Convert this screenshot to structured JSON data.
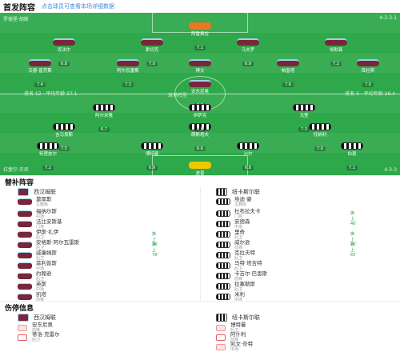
{
  "header": {
    "title": "首发阵容",
    "hint": "点击球员可查看本场详细数据"
  },
  "pitch": {
    "home_team_label": "罗德里·胡斯",
    "away_team_label": "拉斐尔·贝尼",
    "home_formation": "4-2-3-1",
    "away_formation": "4-3-3",
    "home_coach_info": "排名 12 · 平均年龄 27.1",
    "away_coach_info": "排名 5 · 平均年龄 26.4",
    "center_label": "球场阵型"
  },
  "home_players": [
    {
      "name": "阿雷奥拉",
      "rating": "7.1",
      "kit": "gk-home"
    },
    {
      "name": "库法尔",
      "rating": "6.8",
      "kit": "claret"
    },
    {
      "name": "索切克",
      "rating": "7.0",
      "kit": "claret"
    },
    {
      "name": "马夫罗",
      "rating": "6.9",
      "kit": "claret"
    },
    {
      "name": "埃默森",
      "rating": "7.2",
      "kit": "claret"
    },
    {
      "name": "沃德-普劳斯",
      "rating": "7.4",
      "kit": "claret"
    },
    {
      "name": "阿尔瓦雷斯",
      "rating": "7.3",
      "kit": "claret"
    },
    {
      "name": "博文",
      "rating": "6.7",
      "kit": "claret"
    },
    {
      "name": "帕奎塔",
      "rating": "7.6",
      "kit": "claret"
    },
    {
      "name": "库杜斯",
      "rating": "7.0",
      "kit": "claret"
    },
    {
      "name": "安东尼奥",
      "rating": "6.5",
      "kit": "claret"
    }
  ],
  "away_players": [
    {
      "name": "波普",
      "rating": "7.0",
      "kit": "gk-away"
    },
    {
      "name": "特里皮尔",
      "rating": "7.2",
      "kit": "stripes"
    },
    {
      "name": "博特曼",
      "rating": "6.9",
      "kit": "stripes"
    },
    {
      "name": "沙尔",
      "rating": "6.8",
      "kit": "stripes"
    },
    {
      "name": "伯恩",
      "rating": "7.1",
      "kit": "stripes"
    },
    {
      "name": "吉马良斯",
      "rating": "7.5",
      "kit": "stripes"
    },
    {
      "name": "朗斯塔夫",
      "rating": "6.6",
      "kit": "stripes"
    },
    {
      "name": "托纳利",
      "rating": "7.0",
      "kit": "stripes"
    },
    {
      "name": "阿尔米隆",
      "rating": "6.7",
      "kit": "stripes"
    },
    {
      "name": "伊萨克",
      "rating": "7.8",
      "kit": "stripes"
    },
    {
      "name": "戈登",
      "rating": "7.3",
      "kit": "stripes"
    }
  ],
  "subs": {
    "title": "替补阵容",
    "home_team": "西汉姆联",
    "away_team": "纽卡斯尔联",
    "home_coach": "莫耶斯",
    "home_coach_role": "主教练",
    "away_coach": "埃迪·豪",
    "away_coach_role": "主教练",
    "home": [
      {
        "name": "福纳尔斯",
        "pos": "中场",
        "tag": ""
      },
      {
        "name": "法比安斯基",
        "pos": "门将",
        "tag": ""
      },
      {
        "name": "伊斯·扎伊",
        "pos": "后卫",
        "tag": "换上 70'"
      },
      {
        "name": "安格斯·阿尔瓦雷斯",
        "pos": "后卫",
        "tag": "换上 78'"
      },
      {
        "name": "威廉姆斯",
        "pos": "后卫",
        "tag": ""
      },
      {
        "name": "菲利普斯",
        "pos": "中场",
        "tag": ""
      },
      {
        "name": "约翰逊",
        "pos": "后卫",
        "tag": ""
      },
      {
        "name": "英斯",
        "pos": "中场",
        "tag": ""
      },
      {
        "name": "凯塔",
        "pos": "前锋",
        "tag": ""
      }
    ],
    "away": [
      {
        "name": "杜布拉夫卡",
        "pos": "门将",
        "tag": "换上 46'"
      },
      {
        "name": "安德森",
        "pos": "中场",
        "tag": ""
      },
      {
        "name": "里奇",
        "pos": "后卫",
        "tag": "换上 72'"
      },
      {
        "name": "威尔逊",
        "pos": "前锋",
        "tag": "换上 65'"
      },
      {
        "name": "克拉夫特",
        "pos": "后卫",
        "tag": ""
      },
      {
        "name": "马特·塔吉特",
        "pos": "后卫",
        "tag": ""
      },
      {
        "name": "卡吉尔·巴恩斯",
        "pos": "前锋",
        "tag": ""
      },
      {
        "name": "拉塞勒斯",
        "pos": "后卫",
        "tag": ""
      },
      {
        "name": "米利",
        "pos": "中场",
        "tag": ""
      }
    ]
  },
  "injuries": {
    "title": "伤停信息",
    "home": [
      {
        "name": "安东尼奥",
        "pos": "前锋"
      },
      {
        "name": "蒂洛·克雷尔",
        "pos": "后卫"
      }
    ],
    "away": [
      {
        "name": "博特曼",
        "pos": "后卫"
      },
      {
        "name": "阿什利",
        "pos": "前锋"
      },
      {
        "name": "凯文·奈特",
        "pos": "中场"
      }
    ]
  }
}
